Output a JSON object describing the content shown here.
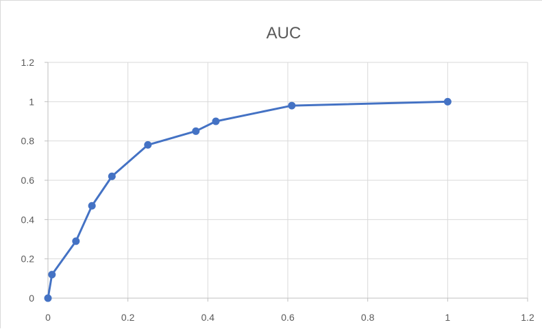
{
  "chart_data": {
    "type": "scatter",
    "title": "AUC",
    "xlabel": "",
    "ylabel": "",
    "xlim": [
      0,
      1.2
    ],
    "ylim": [
      0,
      1.2
    ],
    "x_ticks": [
      0,
      0.2,
      0.4,
      0.6,
      0.8,
      1,
      1.2
    ],
    "x_tick_labels": [
      "0",
      "0.2",
      "0.4",
      "0.6",
      "0.8",
      "1",
      "1.2"
    ],
    "y_ticks": [
      0,
      0.2,
      0.4,
      0.6,
      0.8,
      1,
      1.2
    ],
    "y_tick_labels": [
      "0",
      "0.2",
      "0.4",
      "0.6",
      "0.8",
      "1",
      "1.2"
    ],
    "grid": true,
    "legend": "none",
    "series": [
      {
        "color": "#4472c4",
        "x": [
          0,
          0.01,
          0.07,
          0.11,
          0.16,
          0.25,
          0.37,
          0.42,
          0.61,
          1.0
        ],
        "y": [
          0,
          0.12,
          0.29,
          0.47,
          0.62,
          0.78,
          0.85,
          0.9,
          0.98,
          1.0
        ]
      }
    ]
  }
}
